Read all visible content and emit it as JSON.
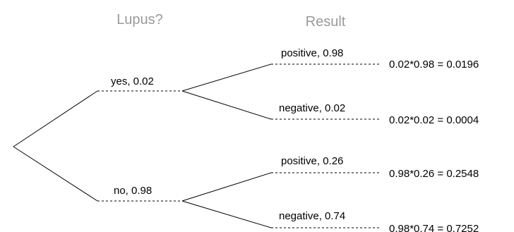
{
  "headers": {
    "level1": "Lupus?",
    "level2": "Result"
  },
  "branches": {
    "yes": {
      "label": "yes, 0.02",
      "children": {
        "positive": {
          "label": "positive, 0.98",
          "product": "0.02*0.98 = 0.0196"
        },
        "negative": {
          "label": "negative, 0.02",
          "product": "0.02*0.02 = 0.0004"
        }
      }
    },
    "no": {
      "label": "no, 0.98",
      "children": {
        "positive": {
          "label": "positive, 0.26",
          "product": "0.98*0.26 = 0.2548"
        },
        "negative": {
          "label": "negative, 0.74",
          "product": "0.98*0.74 = 0.7252"
        }
      }
    }
  }
}
